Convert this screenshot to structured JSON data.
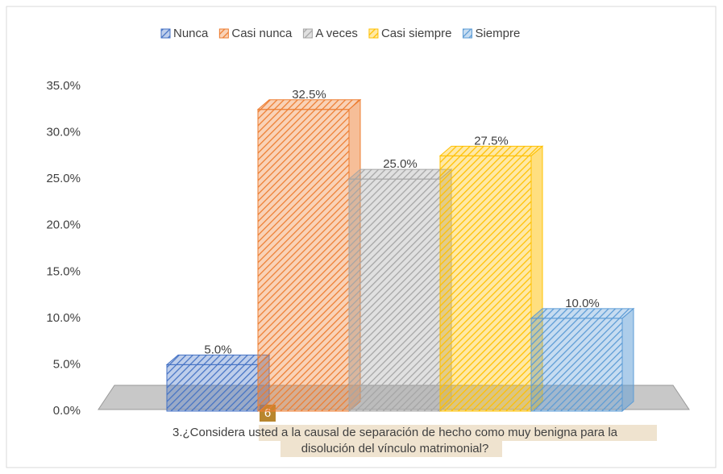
{
  "chart_data": {
    "type": "bar3d",
    "categories": [
      null
    ],
    "series": [
      {
        "name": "Nunca",
        "color": "#4472c4",
        "values": [
          5.0
        ],
        "value_labels": [
          "5.0%"
        ]
      },
      {
        "name": "Casi nunca",
        "color": "#ed7d31",
        "values": [
          32.5
        ],
        "value_labels": [
          "32.5%"
        ]
      },
      {
        "name": "A veces",
        "color": "#a5a5a5",
        "values": [
          25.0
        ],
        "value_labels": [
          "25.0%"
        ]
      },
      {
        "name": "Casi siempre",
        "color": "#ffc000",
        "values": [
          27.5
        ],
        "value_labels": [
          "27.5%"
        ]
      },
      {
        "name": "Siempre",
        "color": "#5b9bd5",
        "values": [
          10.0
        ],
        "value_labels": [
          "10.0%"
        ]
      }
    ],
    "ylim": [
      0,
      35
    ],
    "yticks": [
      {
        "value": 0,
        "label": "0.0%"
      },
      {
        "value": 5,
        "label": "5.0%"
      },
      {
        "value": 10,
        "label": "10.0%"
      },
      {
        "value": 15,
        "label": "15.0%"
      },
      {
        "value": 20,
        "label": "20.0%"
      },
      {
        "value": 25,
        "label": "25.0%"
      },
      {
        "value": 30,
        "label": "30.0%"
      },
      {
        "value": 35,
        "label": "35.0%"
      }
    ],
    "xlabel": [
      "3.¿Considera usted a la causal de separación de hecho como muy benigna para la",
      "disolución del vínculo matrimonial?"
    ],
    "annotation": "6",
    "legend": "top"
  }
}
